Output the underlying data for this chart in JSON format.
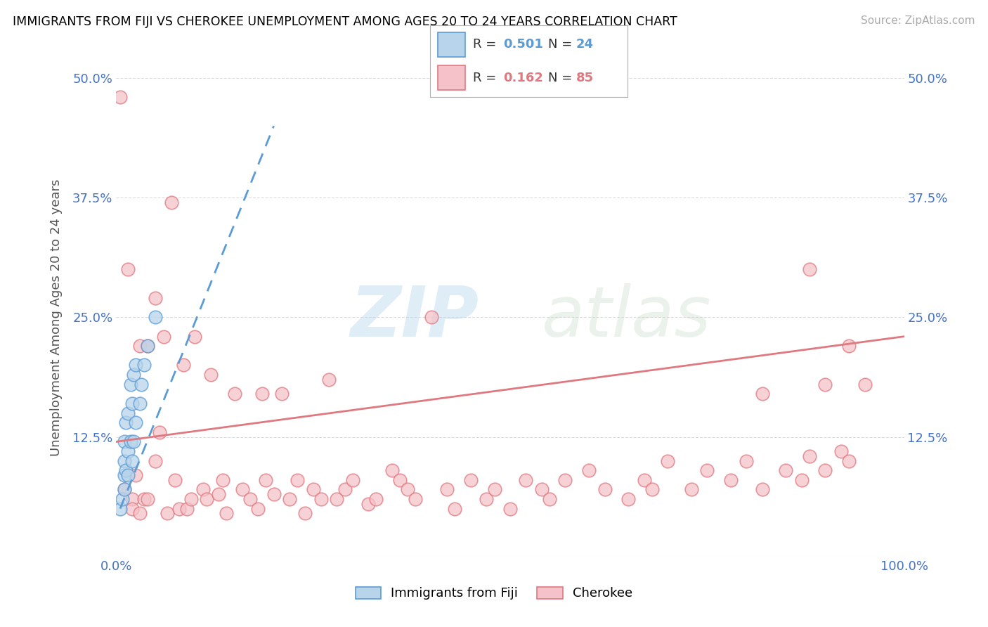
{
  "title": "IMMIGRANTS FROM FIJI VS CHEROKEE UNEMPLOYMENT AMONG AGES 20 TO 24 YEARS CORRELATION CHART",
  "source": "Source: ZipAtlas.com",
  "ylabel": "Unemployment Among Ages 20 to 24 years",
  "watermark": "ZIPatlas",
  "fiji_R": 0.501,
  "fiji_N": 24,
  "cherokee_R": 0.162,
  "cherokee_N": 85,
  "fiji_color": "#b8d4ea",
  "fiji_edge_color": "#5b9bd5",
  "cherokee_color": "#f4c2c8",
  "cherokee_edge_color": "#e07880",
  "fiji_trend_color": "#5b9bd5",
  "cherokee_trend_color": "#e07880",
  "xlim": [
    0,
    100
  ],
  "ylim": [
    0,
    50
  ],
  "fiji_x": [
    0.5,
    0.8,
    1.0,
    1.0,
    1.0,
    1.0,
    1.2,
    1.2,
    1.5,
    1.5,
    1.5,
    1.8,
    1.8,
    2.0,
    2.0,
    2.2,
    2.2,
    2.5,
    2.5,
    3.0,
    3.2,
    3.5,
    4.0,
    5.0
  ],
  "fiji_y": [
    5.0,
    6.0,
    7.0,
    8.5,
    10.0,
    12.0,
    9.0,
    14.0,
    8.5,
    11.0,
    15.0,
    12.0,
    18.0,
    10.0,
    16.0,
    12.0,
    19.0,
    14.0,
    20.0,
    16.0,
    18.0,
    20.0,
    22.0,
    25.0
  ],
  "cherokee_x": [
    0.5,
    1.0,
    1.5,
    2.0,
    2.0,
    2.5,
    3.0,
    3.0,
    3.5,
    4.0,
    4.0,
    5.0,
    5.0,
    5.5,
    6.0,
    6.5,
    7.0,
    7.5,
    8.0,
    8.5,
    9.0,
    9.5,
    10.0,
    11.0,
    11.5,
    12.0,
    13.0,
    13.5,
    14.0,
    15.0,
    16.0,
    17.0,
    18.0,
    18.5,
    19.0,
    20.0,
    21.0,
    22.0,
    23.0,
    24.0,
    25.0,
    26.0,
    27.0,
    28.0,
    29.0,
    30.0,
    32.0,
    33.0,
    35.0,
    36.0,
    37.0,
    38.0,
    40.0,
    42.0,
    43.0,
    45.0,
    47.0,
    48.0,
    50.0,
    52.0,
    54.0,
    55.0,
    57.0,
    60.0,
    62.0,
    65.0,
    67.0,
    68.0,
    70.0,
    73.0,
    75.0,
    78.0,
    80.0,
    82.0,
    85.0,
    87.0,
    88.0,
    90.0,
    92.0,
    93.0,
    95.0,
    82.0,
    88.0,
    90.0,
    93.0
  ],
  "cherokee_y": [
    48.0,
    7.0,
    30.0,
    6.0,
    5.0,
    8.5,
    22.0,
    4.5,
    6.0,
    22.0,
    6.0,
    10.0,
    27.0,
    13.0,
    23.0,
    4.5,
    37.0,
    8.0,
    5.0,
    20.0,
    5.0,
    6.0,
    23.0,
    7.0,
    6.0,
    19.0,
    6.5,
    8.0,
    4.5,
    17.0,
    7.0,
    6.0,
    5.0,
    17.0,
    8.0,
    6.5,
    17.0,
    6.0,
    8.0,
    4.5,
    7.0,
    6.0,
    18.5,
    6.0,
    7.0,
    8.0,
    5.5,
    6.0,
    9.0,
    8.0,
    7.0,
    6.0,
    25.0,
    7.0,
    5.0,
    8.0,
    6.0,
    7.0,
    5.0,
    8.0,
    7.0,
    6.0,
    8.0,
    9.0,
    7.0,
    6.0,
    8.0,
    7.0,
    10.0,
    7.0,
    9.0,
    8.0,
    10.0,
    7.0,
    9.0,
    8.0,
    10.5,
    9.0,
    11.0,
    10.0,
    18.0,
    17.0,
    30.0,
    18.0,
    22.0
  ]
}
